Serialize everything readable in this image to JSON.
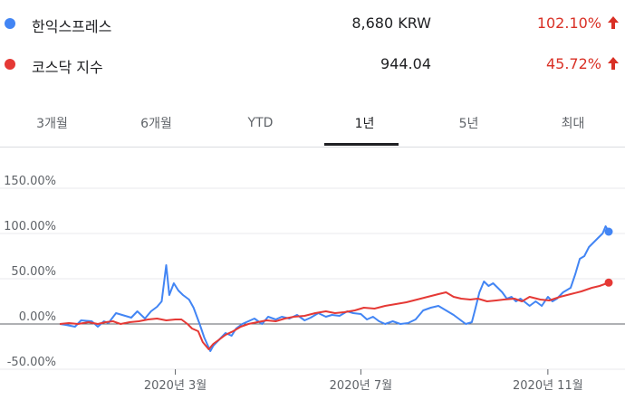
{
  "legend": [
    {
      "name": "한익스프레스",
      "price": "8,680 KRW",
      "change": "102.10%",
      "color": "#4285f4",
      "arrow": "arrow-up-icon"
    },
    {
      "name": "코스닥 지수",
      "price": "944.04",
      "change": "45.72%",
      "color": "#e53935",
      "arrow": "arrow-up-icon"
    }
  ],
  "colors": {
    "up": "#d93025",
    "active_tab": "#202124",
    "axis": "#5f6368",
    "grid": "#e8eaed",
    "zero": "#5f6368"
  },
  "tabs": [
    {
      "label": "3개월",
      "active": false
    },
    {
      "label": "6개월",
      "active": false
    },
    {
      "label": "YTD",
      "active": false
    },
    {
      "label": "1년",
      "active": true
    },
    {
      "label": "5년",
      "active": false
    },
    {
      "label": "최대",
      "active": false
    }
  ],
  "chart_data": {
    "type": "line",
    "ylim": [
      -50,
      150
    ],
    "yticks": [
      "150.00%",
      "100.00%",
      "50.00%",
      "0.00%",
      "-50.00%"
    ],
    "ytick_values": [
      150,
      100,
      50,
      0,
      -50
    ],
    "x_range": [
      "2019-12-16",
      "2020-12-11"
    ],
    "xticks": [
      {
        "label": "2020년 3월",
        "date": "2020-03-01"
      },
      {
        "label": "2020년 7월",
        "date": "2020-07-01"
      },
      {
        "label": "2020년 11월",
        "date": "2020-11-01"
      }
    ],
    "grid": true,
    "series": [
      {
        "name": "한익스프레스",
        "color": "#4285f4",
        "end_marker": true,
        "points": [
          [
            "2019-12-16",
            0
          ],
          [
            "2019-12-20",
            -1
          ],
          [
            "2019-12-26",
            -3
          ],
          [
            "2019-12-30",
            4
          ],
          [
            "2020-01-06",
            3
          ],
          [
            "2020-01-10",
            -3
          ],
          [
            "2020-01-14",
            3
          ],
          [
            "2020-01-17",
            1
          ],
          [
            "2020-01-22",
            12
          ],
          [
            "2020-01-28",
            9
          ],
          [
            "2020-02-01",
            7
          ],
          [
            "2020-02-05",
            14
          ],
          [
            "2020-02-10",
            6
          ],
          [
            "2020-02-14",
            14
          ],
          [
            "2020-02-18",
            19
          ],
          [
            "2020-02-21",
            25
          ],
          [
            "2020-02-24",
            65
          ],
          [
            "2020-02-26",
            32
          ],
          [
            "2020-02-29",
            45
          ],
          [
            "2020-03-03",
            37
          ],
          [
            "2020-03-06",
            32
          ],
          [
            "2020-03-10",
            27
          ],
          [
            "2020-03-13",
            18
          ],
          [
            "2020-03-17",
            0
          ],
          [
            "2020-03-20",
            -15
          ],
          [
            "2020-03-24",
            -30
          ],
          [
            "2020-03-26",
            -24
          ],
          [
            "2020-03-30",
            -17
          ],
          [
            "2020-04-03",
            -10
          ],
          [
            "2020-04-07",
            -13
          ],
          [
            "2020-04-10",
            -5
          ],
          [
            "2020-04-14",
            0
          ],
          [
            "2020-04-18",
            3
          ],
          [
            "2020-04-22",
            6
          ],
          [
            "2020-04-27",
            0
          ],
          [
            "2020-05-01",
            8
          ],
          [
            "2020-05-06",
            5
          ],
          [
            "2020-05-10",
            8
          ],
          [
            "2020-05-15",
            6
          ],
          [
            "2020-05-20",
            10
          ],
          [
            "2020-05-25",
            4
          ],
          [
            "2020-05-29",
            7
          ],
          [
            "2020-06-03",
            12
          ],
          [
            "2020-06-08",
            8
          ],
          [
            "2020-06-12",
            10
          ],
          [
            "2020-06-17",
            9
          ],
          [
            "2020-06-22",
            14
          ],
          [
            "2020-06-26",
            12
          ],
          [
            "2020-07-01",
            11
          ],
          [
            "2020-07-05",
            5
          ],
          [
            "2020-07-09",
            8
          ],
          [
            "2020-07-13",
            3
          ],
          [
            "2020-07-17",
            0
          ],
          [
            "2020-07-22",
            3
          ],
          [
            "2020-07-27",
            0
          ],
          [
            "2020-08-01",
            1
          ],
          [
            "2020-08-06",
            5
          ],
          [
            "2020-08-11",
            15
          ],
          [
            "2020-08-16",
            18
          ],
          [
            "2020-08-21",
            20
          ],
          [
            "2020-08-26",
            15
          ],
          [
            "2020-08-31",
            10
          ],
          [
            "2020-09-04",
            5
          ],
          [
            "2020-09-08",
            0
          ],
          [
            "2020-09-12",
            2
          ],
          [
            "2020-09-14",
            15
          ],
          [
            "2020-09-17",
            35
          ],
          [
            "2020-09-20",
            47
          ],
          [
            "2020-09-23",
            42
          ],
          [
            "2020-09-26",
            45
          ],
          [
            "2020-09-29",
            40
          ],
          [
            "2020-10-02",
            35
          ],
          [
            "2020-10-05",
            28
          ],
          [
            "2020-10-08",
            30
          ],
          [
            "2020-10-11",
            25
          ],
          [
            "2020-10-14",
            28
          ],
          [
            "2020-10-17",
            24
          ],
          [
            "2020-10-20",
            20
          ],
          [
            "2020-10-24",
            25
          ],
          [
            "2020-10-28",
            20
          ],
          [
            "2020-11-01",
            30
          ],
          [
            "2020-11-04",
            25
          ],
          [
            "2020-11-07",
            28
          ],
          [
            "2020-11-11",
            35
          ],
          [
            "2020-11-14",
            38
          ],
          [
            "2020-11-16",
            40
          ],
          [
            "2020-11-19",
            55
          ],
          [
            "2020-11-22",
            72
          ],
          [
            "2020-11-25",
            75
          ],
          [
            "2020-11-28",
            85
          ],
          [
            "2020-12-01",
            90
          ],
          [
            "2020-12-04",
            95
          ],
          [
            "2020-12-07",
            100
          ],
          [
            "2020-12-09",
            108
          ],
          [
            "2020-12-11",
            102
          ]
        ]
      },
      {
        "name": "코스닥 지수",
        "color": "#e53935",
        "end_marker": true,
        "points": [
          [
            "2019-12-16",
            0
          ],
          [
            "2019-12-22",
            1
          ],
          [
            "2019-12-28",
            0
          ],
          [
            "2020-01-04",
            2
          ],
          [
            "2020-01-10",
            0
          ],
          [
            "2020-01-15",
            2
          ],
          [
            "2020-01-20",
            3
          ],
          [
            "2020-01-25",
            0
          ],
          [
            "2020-01-31",
            2
          ],
          [
            "2020-02-06",
            3
          ],
          [
            "2020-02-12",
            5
          ],
          [
            "2020-02-18",
            6
          ],
          [
            "2020-02-24",
            4
          ],
          [
            "2020-03-01",
            5
          ],
          [
            "2020-03-05",
            5
          ],
          [
            "2020-03-09",
            0
          ],
          [
            "2020-03-12",
            -5
          ],
          [
            "2020-03-16",
            -8
          ],
          [
            "2020-03-19",
            -20
          ],
          [
            "2020-03-23",
            -28
          ],
          [
            "2020-03-26",
            -22
          ],
          [
            "2020-03-30",
            -17
          ],
          [
            "2020-04-03",
            -12
          ],
          [
            "2020-04-08",
            -8
          ],
          [
            "2020-04-13",
            -3
          ],
          [
            "2020-04-18",
            0
          ],
          [
            "2020-04-24",
            2
          ],
          [
            "2020-04-30",
            4
          ],
          [
            "2020-05-06",
            3
          ],
          [
            "2020-05-12",
            6
          ],
          [
            "2020-05-18",
            8
          ],
          [
            "2020-05-25",
            9
          ],
          [
            "2020-06-01",
            12
          ],
          [
            "2020-06-08",
            14
          ],
          [
            "2020-06-14",
            12
          ],
          [
            "2020-06-20",
            13
          ],
          [
            "2020-06-27",
            15
          ],
          [
            "2020-07-03",
            18
          ],
          [
            "2020-07-10",
            17
          ],
          [
            "2020-07-17",
            20
          ],
          [
            "2020-07-24",
            22
          ],
          [
            "2020-07-31",
            24
          ],
          [
            "2020-08-07",
            27
          ],
          [
            "2020-08-14",
            30
          ],
          [
            "2020-08-21",
            33
          ],
          [
            "2020-08-26",
            35
          ],
          [
            "2020-08-31",
            30
          ],
          [
            "2020-09-05",
            28
          ],
          [
            "2020-09-11",
            27
          ],
          [
            "2020-09-16",
            28
          ],
          [
            "2020-09-22",
            25
          ],
          [
            "2020-09-28",
            26
          ],
          [
            "2020-10-03",
            27
          ],
          [
            "2020-10-10",
            28
          ],
          [
            "2020-10-15",
            25
          ],
          [
            "2020-10-20",
            30
          ],
          [
            "2020-10-27",
            27
          ],
          [
            "2020-11-02",
            26
          ],
          [
            "2020-11-09",
            30
          ],
          [
            "2020-11-16",
            33
          ],
          [
            "2020-11-23",
            36
          ],
          [
            "2020-11-30",
            40
          ],
          [
            "2020-12-05",
            42
          ],
          [
            "2020-12-11",
            45.72
          ]
        ]
      }
    ]
  }
}
